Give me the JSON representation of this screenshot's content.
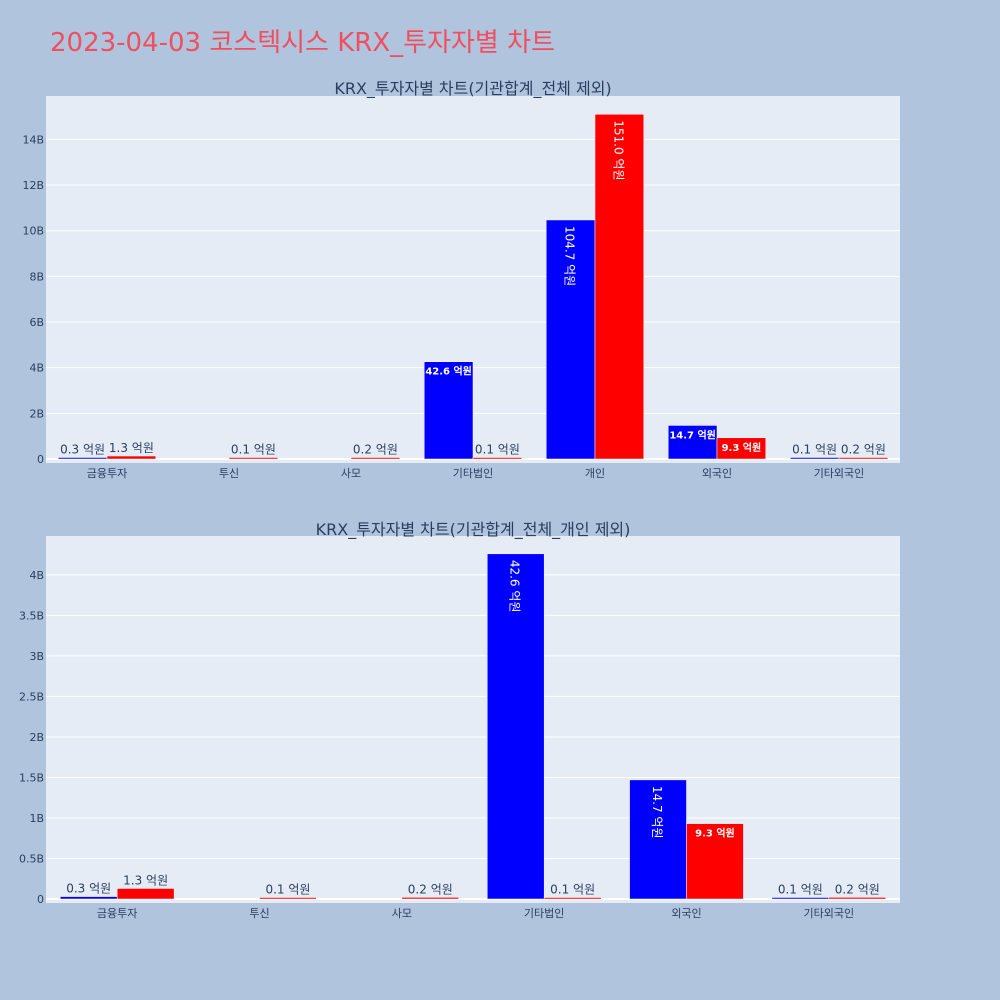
{
  "title": "2023-04-03 코스텍시스 KRX_투자자별 차트",
  "colors": {
    "buy": "#0000ff",
    "sell": "#ff0000",
    "plot_bg": "#e5ecf6",
    "page_bg": "#b0c4de",
    "title": "#ef4f5f"
  },
  "chart_data": [
    {
      "type": "bar",
      "title": "KRX_투자자별 차트(기관합계_전체 제외)",
      "categories": [
        "금융투자",
        "투신",
        "사모",
        "기타법인",
        "개인",
        "외국인",
        "기타외국인"
      ],
      "series": [
        {
          "color": "#0000ff",
          "values": [
            30000000,
            0,
            0,
            4260000000,
            10470000000,
            1470000000,
            10000000
          ],
          "labels": [
            "0.3 억원",
            "",
            "",
            "42.6 억원",
            "104.7 억원",
            "14.7 억원",
            "0.1 억원"
          ]
        },
        {
          "color": "#ff0000",
          "values": [
            130000000,
            10000000,
            20000000,
            10000000,
            15100000000,
            930000000,
            20000000
          ],
          "labels": [
            "1.3 억원",
            "0.1 억원",
            "0.2 억원",
            "0.1 억원",
            "151.0 억원",
            "9.3 억원",
            "0.2 억원"
          ]
        }
      ],
      "yticks": [
        0,
        2000000000,
        4000000000,
        6000000000,
        8000000000,
        10000000000,
        12000000000,
        14000000000
      ],
      "ytick_labels": [
        "0",
        "2B",
        "4B",
        "6B",
        "8B",
        "10B",
        "12B",
        "14B"
      ],
      "ylim": [
        0,
        15900000000
      ],
      "grid": true
    },
    {
      "type": "bar",
      "title": "KRX_투자자별 차트(기관합계_전체_개인 제외)",
      "categories": [
        "금융투자",
        "투신",
        "사모",
        "기타법인",
        "외국인",
        "기타외국인"
      ],
      "series": [
        {
          "color": "#0000ff",
          "values": [
            30000000,
            0,
            0,
            4260000000,
            1470000000,
            10000000
          ],
          "labels": [
            "0.3 억원",
            "",
            "",
            "42.6 억원",
            "14.7 억원",
            "0.1 억원"
          ]
        },
        {
          "color": "#ff0000",
          "values": [
            130000000,
            10000000,
            20000000,
            10000000,
            930000000,
            20000000
          ],
          "labels": [
            "1.3 억원",
            "0.1 억원",
            "0.2 억원",
            "0.1 억원",
            "9.3 억원",
            "0.2 억원"
          ]
        }
      ],
      "yticks": [
        0,
        500000000,
        1000000000,
        1500000000,
        2000000000,
        2500000000,
        3000000000,
        3500000000,
        4000000000
      ],
      "ytick_labels": [
        "0",
        "0.5B",
        "1B",
        "1.5B",
        "2B",
        "2.5B",
        "3B",
        "3.5B",
        "4B"
      ],
      "ylim": [
        0,
        4480000000
      ],
      "grid": true
    }
  ]
}
